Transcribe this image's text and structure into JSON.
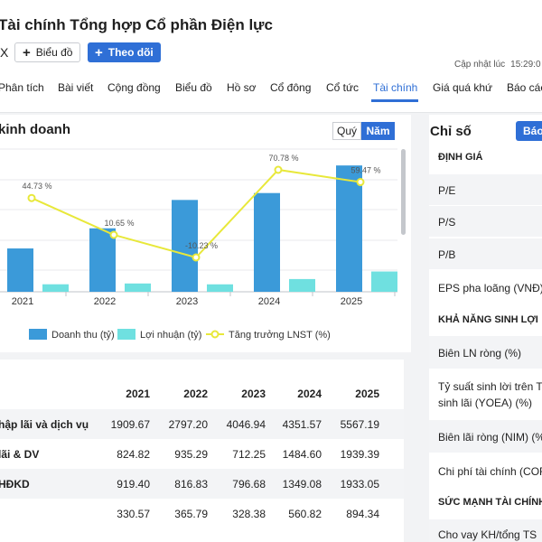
{
  "header": {
    "title": "Tài chính Tổng hợp Cổ phần Điện lực",
    "ticker": "X",
    "chart_button": "Biểu đồ",
    "follow_button": "Theo dõi",
    "updated_label": "Cập nhật lúc",
    "updated_time": "15:29:0"
  },
  "tabs": [
    "Phân tích",
    "Bài viết",
    "Cộng đồng",
    "Biểu đồ",
    "Hồ sơ",
    "Cổ đông",
    "Cổ tức",
    "Tài chính",
    "Giá quá khứ",
    "Báo các"
  ],
  "active_tab": "Tài chính",
  "business": {
    "title": "kinh doanh",
    "toggle_quarter": "Quý",
    "toggle_year": "Năm"
  },
  "chart_data": {
    "type": "bar",
    "categories": [
      "2021",
      "2022",
      "2023",
      "2024",
      "2025"
    ],
    "series": [
      {
        "name": "Doanh thu (tỷ)",
        "type": "bar",
        "color": "#3b9ad9",
        "values": [
          1909.67,
          2797.2,
          4046.94,
          4351.57,
          5567.19
        ]
      },
      {
        "name": "Lợi nhuận (tỷ)",
        "type": "bar",
        "color": "#6fe0e0",
        "values": [
          330.57,
          365.79,
          328.38,
          560.82,
          894.34
        ]
      },
      {
        "name": "Tăng trưởng LNST (%)",
        "type": "line",
        "color": "#e8e83a",
        "values": [
          44.73,
          10.65,
          -10.23,
          70.78,
          59.47
        ],
        "labels": [
          "44.73 %",
          "10.65 %",
          "-10.23 %",
          "70.78 %",
          "59.47 %"
        ]
      }
    ],
    "grid": true,
    "legend": "bottom"
  },
  "table": {
    "years": [
      "2021",
      "2022",
      "2023",
      "2024",
      "2025"
    ],
    "rows": [
      {
        "label": "hập lãi và dịch vụ",
        "values": [
          "1909.67",
          "2797.20",
          "4046.94",
          "4351.57",
          "5567.19"
        ]
      },
      {
        "label": "lãi & DV",
        "values": [
          "824.82",
          "935.29",
          "712.25",
          "1484.60",
          "1939.39"
        ]
      },
      {
        "label": "HĐKD",
        "values": [
          "919.40",
          "816.83",
          "796.68",
          "1349.08",
          "1933.05"
        ]
      },
      {
        "label": "",
        "values": [
          "330.57",
          "365.79",
          "328.38",
          "560.82",
          "894.34"
        ]
      }
    ]
  },
  "indicators": {
    "title": "Chỉ số",
    "button": "Báo",
    "sections": [
      {
        "title": "ĐỊNH GIÁ",
        "items": [
          "P/E",
          "P/S",
          "P/B",
          "EPS pha loãng (VNĐ)"
        ]
      },
      {
        "title": "KHẢ NĂNG SINH LỢI",
        "items": [
          "Biên LN ròng (%)",
          "Tỷ suất sinh lời trên TS",
          "sinh lãi (YOEA) (%)",
          "Biên lãi ròng (NIM) (%",
          "Chi phí tài chính (COF"
        ]
      },
      {
        "title": "SỨC MẠNH TÀI CHÍNH",
        "items": [
          "Cho vay KH/tổng TS"
        ]
      }
    ]
  }
}
